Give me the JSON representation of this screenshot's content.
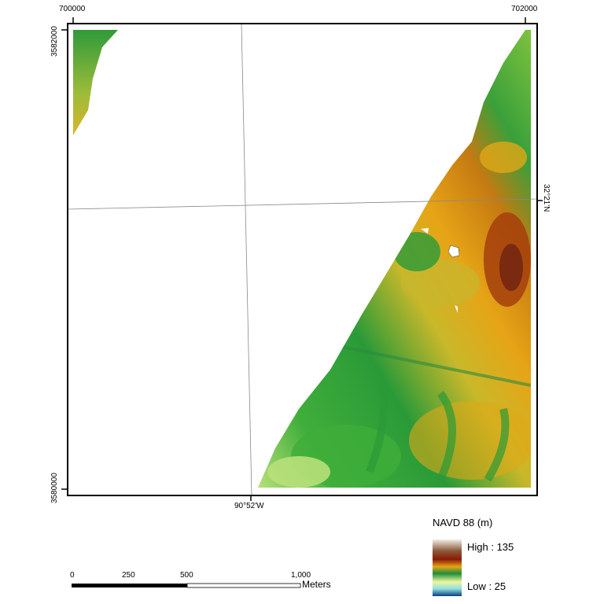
{
  "map": {
    "frame_ticks": {
      "x_top_left": "700000",
      "x_top_right": "702000",
      "y_left_top": "3582000",
      "y_left_bottom": "3580000"
    },
    "graticule": {
      "latitude_label": "32°21'N",
      "longitude_label": "90°52'W"
    },
    "colors": {
      "low": "#0b4a8a",
      "mid_low": "#1e8f3a",
      "mid": "#e9b21a",
      "high": "#8a2a0a",
      "top": "#f2ece6"
    }
  },
  "legend": {
    "title": "NAVD 88 (m)",
    "high_label": "High : 135",
    "low_label": "Low : 25"
  },
  "scalebar": {
    "ticks": [
      "0",
      "250",
      "500",
      "1,000"
    ],
    "unit": "Meters"
  }
}
